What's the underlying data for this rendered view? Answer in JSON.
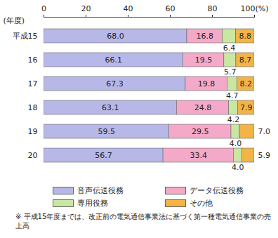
{
  "chart_data": {
    "type": "bar",
    "orientation": "horizontal",
    "stacked": true,
    "data_labels": true,
    "y_label": "(年度)",
    "categories": [
      "平成15",
      "16",
      "17",
      "18",
      "19",
      "20"
    ],
    "xlim": [
      0,
      100
    ],
    "xticks": [
      0,
      20,
      40,
      60,
      80,
      {
        "value": 100,
        "label": "100(%)"
      }
    ],
    "series": [
      {
        "name": "音声伝送役務",
        "color": "#b7b7e8",
        "values": [
          68,
          66.1,
          67.3,
          63.1,
          59.5,
          56.7
        ],
        "value_labels": [
          "68.0",
          "66.1",
          "67.3",
          "63.1",
          "59.5",
          "56.7"
        ]
      },
      {
        "name": "データ伝送役務",
        "color": "#f5a9c8",
        "values": [
          16.8,
          19.5,
          19.8,
          24.8,
          29.5,
          33.4
        ],
        "value_labels": [
          "16.8",
          "19.5",
          "19.8",
          "24.8",
          "29.5",
          "33.4"
        ]
      },
      {
        "name": "専用役務",
        "color": "#c9e6a3",
        "values": [
          6.4,
          5.7,
          4.7,
          4.2,
          4,
          4
        ],
        "value_labels": [
          "6.4",
          "5.7",
          "4.7",
          "4.2",
          "4.0",
          "4.0"
        ]
      },
      {
        "name": "その他",
        "color": "#f2b446",
        "values": [
          8.8,
          8.7,
          8.2,
          7.9,
          7,
          5.9
        ],
        "value_labels": [
          "8.8",
          "8.7",
          "8.2",
          "7.9",
          "7.0",
          "5.9"
        ]
      }
    ],
    "annotations": [
      "※ 平成15年度までは、改正前の電気通信事業法に基づく第一種電気通信事業の売上高"
    ]
  }
}
